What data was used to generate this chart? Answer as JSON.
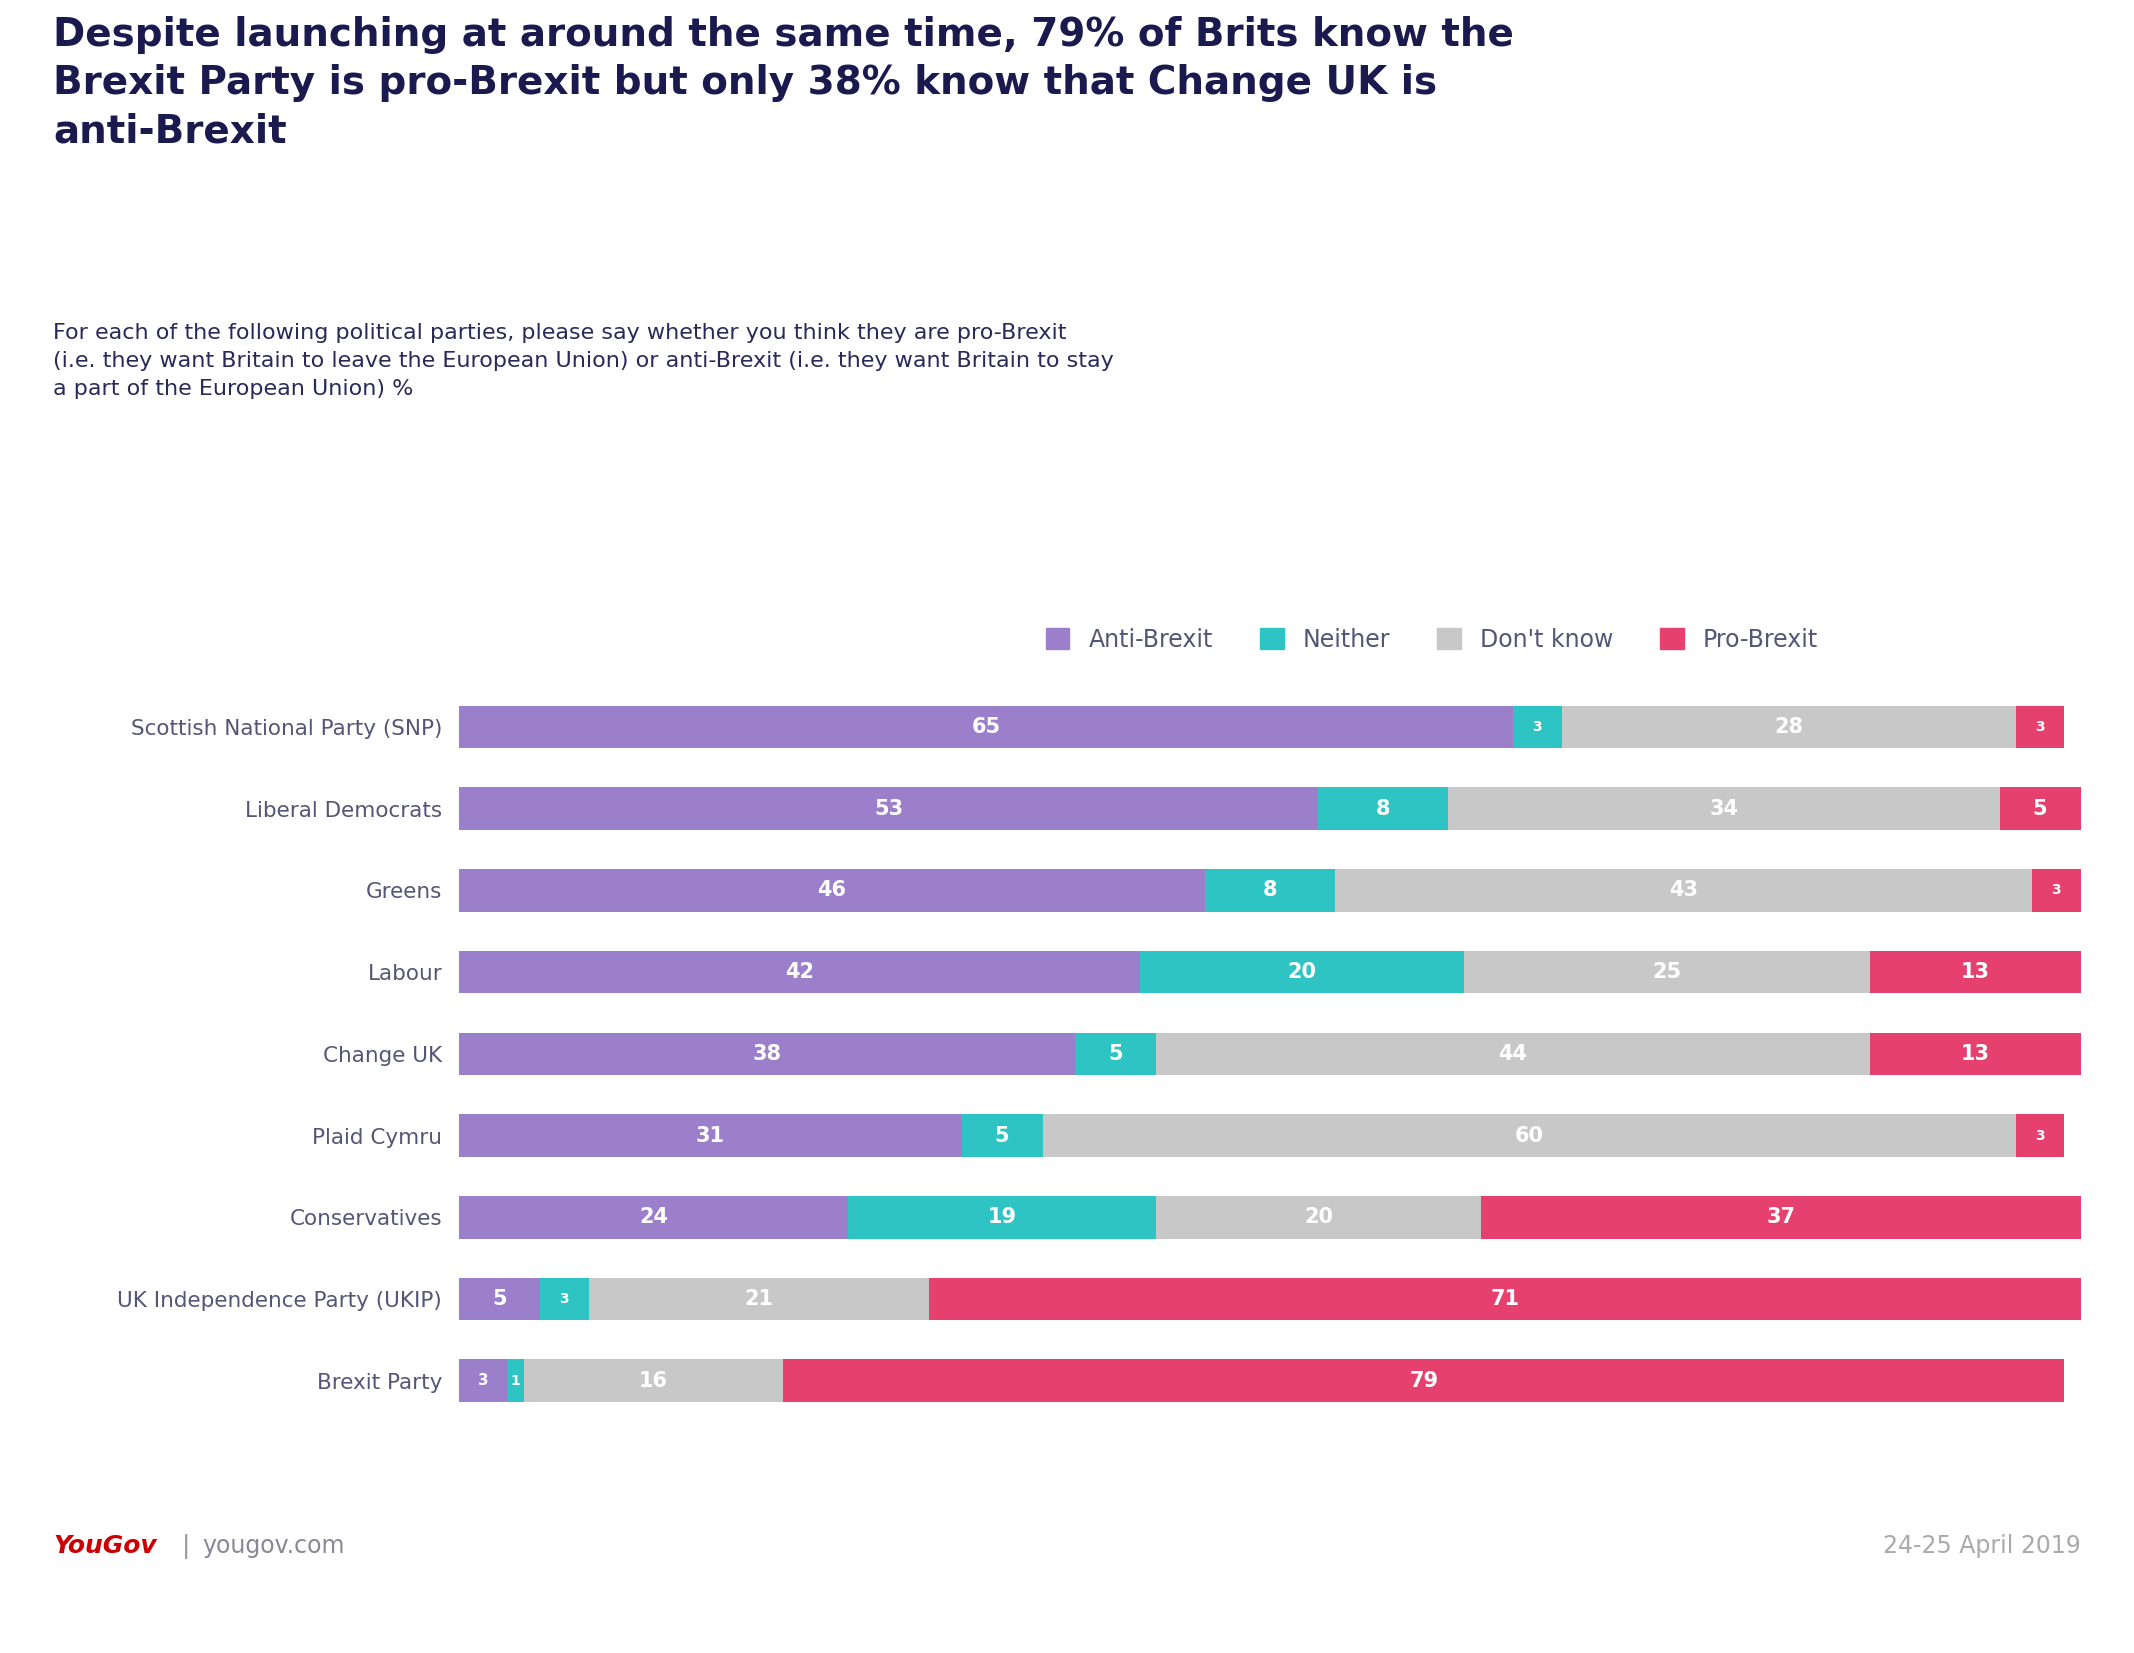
{
  "title_line1": "Despite launching at around the same time, 79% of Brits know the",
  "title_line2": "Brexit Party is pro-Brexit but only 38% know that Change UK is",
  "title_line3": "anti-Brexit",
  "subtitle": "For each of the following political parties, please say whether you think they are pro-Brexit\n(i.e. they want Britain to leave the European Union) or anti-Brexit (i.e. they want Britain to stay\na part of the European Union) %",
  "parties": [
    "Scottish National Party (SNP)",
    "Liberal Democrats",
    "Greens",
    "Labour",
    "Change UK",
    "Plaid Cymru",
    "Conservatives",
    "UK Independence Party (UKIP)",
    "Brexit Party"
  ],
  "anti_brexit": [
    65,
    53,
    46,
    42,
    38,
    31,
    24,
    5,
    3
  ],
  "neither": [
    3,
    8,
    8,
    20,
    5,
    5,
    19,
    3,
    1
  ],
  "dont_know": [
    28,
    34,
    43,
    25,
    44,
    60,
    20,
    21,
    16
  ],
  "pro_brexit": [
    3,
    5,
    3,
    13,
    13,
    3,
    37,
    71,
    79
  ],
  "color_anti": "#9b7fca",
  "color_neither": "#2ec4c4",
  "color_dont": "#c8c8c8",
  "color_pro": "#e5406e",
  "bg_header": "#eeecf5",
  "bg_chart": "#ffffff",
  "legend_labels": [
    "Anti-Brexit",
    "Neither",
    "Don't know",
    "Pro-Brexit"
  ],
  "date_text": "24-25 April 2019",
  "yougov_text": "YouGov",
  "yougov_pipe": "|",
  "yougov_url": "yougov.com",
  "title_color": "#1a1a4e",
  "subtitle_color": "#2a2a5a",
  "label_color": "#555577",
  "footer_color": "#aaaaaa"
}
